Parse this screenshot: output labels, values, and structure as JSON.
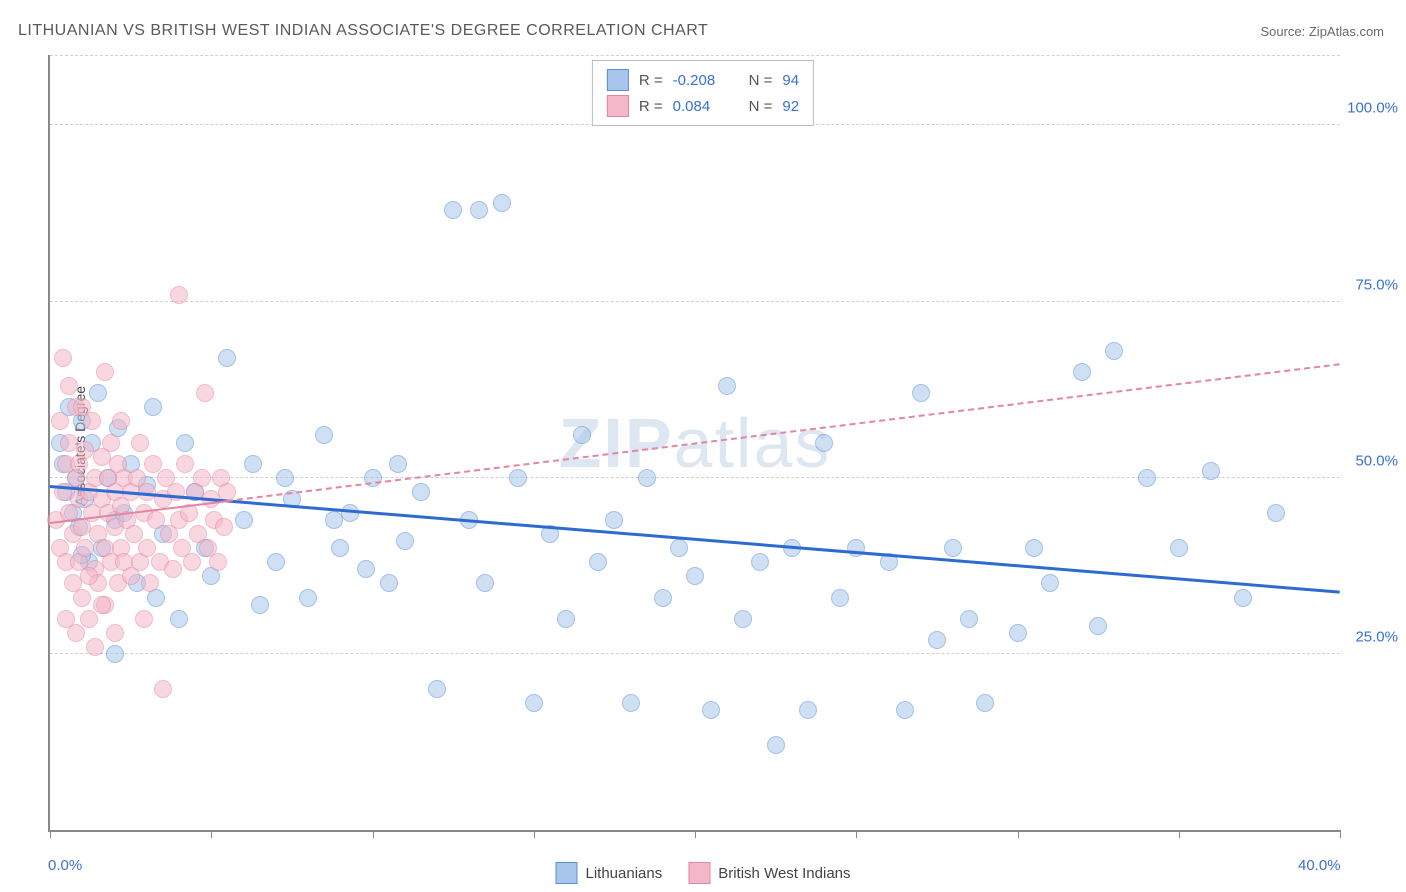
{
  "title": "LITHUANIAN VS BRITISH WEST INDIAN ASSOCIATE'S DEGREE CORRELATION CHART",
  "source_label": "Source: ZipAtlas.com",
  "y_axis_title": "Associate's Degree",
  "watermark": {
    "bold": "ZIP",
    "rest": "atlas"
  },
  "chart": {
    "type": "scatter",
    "background_color": "#ffffff",
    "grid_color": "#d0d0d0",
    "axis_color": "#888888",
    "xlim": [
      0,
      40
    ],
    "ylim": [
      0,
      110
    ],
    "xtick_positions": [
      0,
      5,
      10,
      15,
      20,
      25,
      30,
      35,
      40
    ],
    "xtick_labels": {
      "0": "0.0%",
      "40": "40.0%"
    },
    "ytick_positions": [
      25,
      50,
      75,
      100
    ],
    "ytick_labels": {
      "25": "25.0%",
      "50": "50.0%",
      "75": "75.0%",
      "100": "100.0%"
    },
    "point_radius": 8,
    "point_opacity": 0.55,
    "series": [
      {
        "name": "Lithuanians",
        "fill_color": "#a8c6ec",
        "stroke_color": "#5b8fd4",
        "trend": {
          "y_at_x0": 48.5,
          "y_at_xmax": 33.5,
          "color": "#2d6bd0",
          "width": 3,
          "dash": "solid",
          "solid_until_x": 40
        },
        "R": "-0.208",
        "N": "94",
        "points": [
          [
            0.3,
            55
          ],
          [
            0.4,
            52
          ],
          [
            0.5,
            48
          ],
          [
            0.6,
            60
          ],
          [
            0.7,
            45
          ],
          [
            0.8,
            50
          ],
          [
            0.9,
            43
          ],
          [
            1.0,
            58
          ],
          [
            1.1,
            47
          ],
          [
            1.2,
            38
          ],
          [
            1.3,
            55
          ],
          [
            1.5,
            62
          ],
          [
            1.6,
            40
          ],
          [
            1.8,
            50
          ],
          [
            2.0,
            25
          ],
          [
            2.1,
            57
          ],
          [
            2.3,
            45
          ],
          [
            2.5,
            52
          ],
          [
            2.7,
            35
          ],
          [
            3.0,
            49
          ],
          [
            3.2,
            60
          ],
          [
            3.5,
            42
          ],
          [
            4.0,
            30
          ],
          [
            4.2,
            55
          ],
          [
            4.5,
            48
          ],
          [
            5.0,
            36
          ],
          [
            5.5,
            67
          ],
          [
            6.0,
            44
          ],
          [
            6.3,
            52
          ],
          [
            7.0,
            38
          ],
          [
            7.3,
            50
          ],
          [
            7.5,
            47
          ],
          [
            8.0,
            33
          ],
          [
            8.5,
            56
          ],
          [
            9.0,
            40
          ],
          [
            9.3,
            45
          ],
          [
            9.8,
            37
          ],
          [
            10.0,
            50
          ],
          [
            10.5,
            35
          ],
          [
            11.0,
            41
          ],
          [
            11.5,
            48
          ],
          [
            12.0,
            20
          ],
          [
            12.5,
            88
          ],
          [
            13.0,
            44
          ],
          [
            13.3,
            88
          ],
          [
            13.5,
            35
          ],
          [
            14.0,
            89
          ],
          [
            14.5,
            50
          ],
          [
            15.0,
            18
          ],
          [
            15.5,
            42
          ],
          [
            16.0,
            30
          ],
          [
            16.5,
            56
          ],
          [
            17.0,
            38
          ],
          [
            17.5,
            44
          ],
          [
            18.0,
            18
          ],
          [
            18.5,
            50
          ],
          [
            19.0,
            33
          ],
          [
            19.5,
            40
          ],
          [
            20.0,
            36
          ],
          [
            20.5,
            17
          ],
          [
            21.0,
            63
          ],
          [
            21.5,
            30
          ],
          [
            22.0,
            38
          ],
          [
            22.5,
            12
          ],
          [
            23.0,
            40
          ],
          [
            23.5,
            17
          ],
          [
            24.0,
            55
          ],
          [
            24.5,
            33
          ],
          [
            25.0,
            40
          ],
          [
            26.0,
            38
          ],
          [
            26.5,
            17
          ],
          [
            27.0,
            62
          ],
          [
            27.5,
            27
          ],
          [
            28.0,
            40
          ],
          [
            28.5,
            30
          ],
          [
            29.0,
            18
          ],
          [
            30.0,
            28
          ],
          [
            30.5,
            40
          ],
          [
            31.0,
            35
          ],
          [
            32.0,
            65
          ],
          [
            32.5,
            29
          ],
          [
            33.0,
            68
          ],
          [
            34.0,
            50
          ],
          [
            35.0,
            40
          ],
          [
            36.0,
            51
          ],
          [
            37.0,
            33
          ],
          [
            38.0,
            45
          ],
          [
            1.0,
            39
          ],
          [
            2.0,
            44
          ],
          [
            3.3,
            33
          ],
          [
            4.8,
            40
          ],
          [
            6.5,
            32
          ],
          [
            8.8,
            44
          ],
          [
            10.8,
            52
          ]
        ]
      },
      {
        "name": "British West Indians",
        "fill_color": "#f4b7c7",
        "stroke_color": "#e485a2",
        "trend": {
          "y_at_x0": 43.5,
          "y_at_xmax": 66.0,
          "color": "#e485a2",
          "width": 2,
          "dash": "dashed",
          "solid_until_x": 5.5
        },
        "R": "0.084",
        "N": "92",
        "points": [
          [
            0.2,
            44
          ],
          [
            0.3,
            40
          ],
          [
            0.4,
            48
          ],
          [
            0.5,
            52
          ],
          [
            0.5,
            38
          ],
          [
            0.6,
            45
          ],
          [
            0.6,
            55
          ],
          [
            0.7,
            35
          ],
          [
            0.7,
            42
          ],
          [
            0.8,
            50
          ],
          [
            0.8,
            60
          ],
          [
            0.9,
            38
          ],
          [
            0.9,
            47
          ],
          [
            1.0,
            33
          ],
          [
            1.0,
            43
          ],
          [
            1.1,
            54
          ],
          [
            1.1,
            40
          ],
          [
            1.2,
            48
          ],
          [
            1.2,
            30
          ],
          [
            1.3,
            45
          ],
          [
            1.3,
            58
          ],
          [
            1.4,
            37
          ],
          [
            1.4,
            50
          ],
          [
            1.5,
            42
          ],
          [
            1.5,
            35
          ],
          [
            1.6,
            47
          ],
          [
            1.6,
            53
          ],
          [
            1.7,
            40
          ],
          [
            1.7,
            32
          ],
          [
            1.8,
            45
          ],
          [
            1.8,
            50
          ],
          [
            1.9,
            38
          ],
          [
            1.9,
            55
          ],
          [
            2.0,
            43
          ],
          [
            2.0,
            48
          ],
          [
            2.1,
            35
          ],
          [
            2.1,
            52
          ],
          [
            2.2,
            40
          ],
          [
            2.2,
            46
          ],
          [
            2.3,
            38
          ],
          [
            2.3,
            50
          ],
          [
            2.4,
            44
          ],
          [
            2.5,
            48
          ],
          [
            2.5,
            36
          ],
          [
            2.6,
            42
          ],
          [
            2.7,
            50
          ],
          [
            2.8,
            38
          ],
          [
            2.8,
            55
          ],
          [
            2.9,
            45
          ],
          [
            3.0,
            40
          ],
          [
            3.0,
            48
          ],
          [
            3.1,
            35
          ],
          [
            3.2,
            52
          ],
          [
            3.3,
            44
          ],
          [
            3.4,
            38
          ],
          [
            3.5,
            47
          ],
          [
            3.5,
            20
          ],
          [
            3.6,
            50
          ],
          [
            3.7,
            42
          ],
          [
            3.8,
            37
          ],
          [
            3.9,
            48
          ],
          [
            4.0,
            44
          ],
          [
            4.0,
            76
          ],
          [
            4.1,
            40
          ],
          [
            4.2,
            52
          ],
          [
            4.3,
            45
          ],
          [
            4.4,
            38
          ],
          [
            4.5,
            48
          ],
          [
            4.6,
            42
          ],
          [
            4.7,
            50
          ],
          [
            4.8,
            62
          ],
          [
            4.9,
            40
          ],
          [
            5.0,
            47
          ],
          [
            5.1,
            44
          ],
          [
            5.2,
            38
          ],
          [
            5.3,
            50
          ],
          [
            5.4,
            43
          ],
          [
            5.5,
            48
          ],
          [
            0.4,
            67
          ],
          [
            0.6,
            63
          ],
          [
            1.0,
            60
          ],
          [
            1.7,
            65
          ],
          [
            2.2,
            58
          ],
          [
            2.9,
            30
          ],
          [
            0.5,
            30
          ],
          [
            0.8,
            28
          ],
          [
            1.4,
            26
          ],
          [
            0.3,
            58
          ],
          [
            0.9,
            52
          ],
          [
            1.2,
            36
          ],
          [
            1.6,
            32
          ],
          [
            2.0,
            28
          ]
        ]
      }
    ]
  },
  "legend_top": {
    "r_prefix": "R =",
    "n_prefix": "N ="
  },
  "legend_bottom": {
    "items": [
      "Lithuanians",
      "British West Indians"
    ]
  }
}
